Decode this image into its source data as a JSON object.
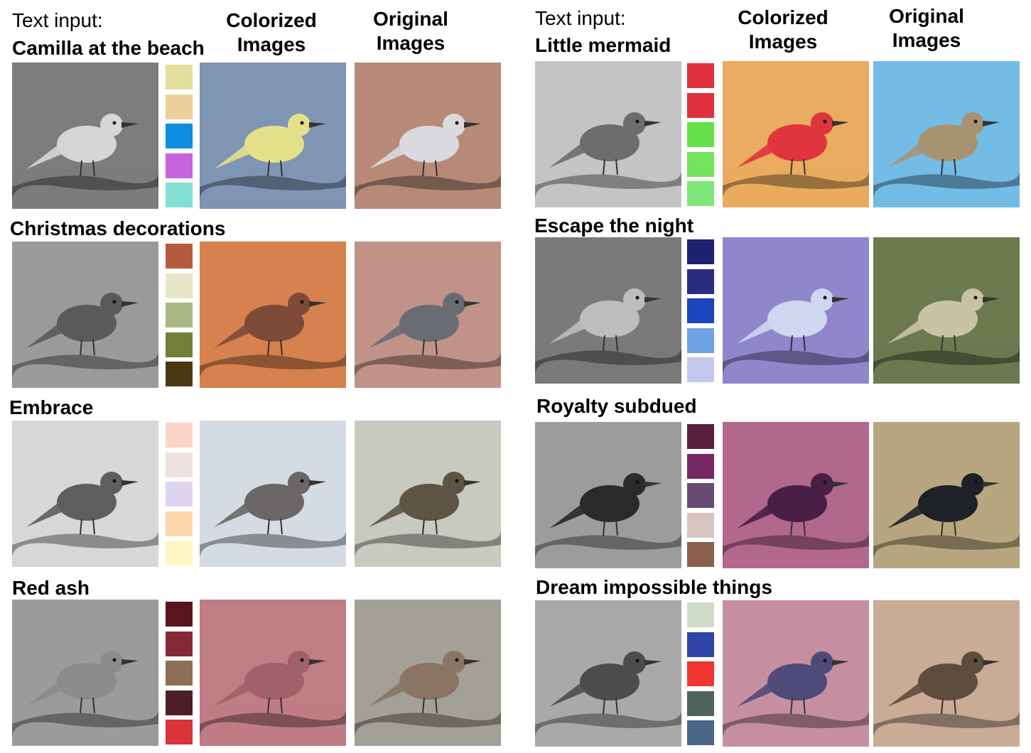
{
  "headers": {
    "text_input": "Text input:",
    "colorized_line1": "Colorized",
    "colorized_line2": "Images",
    "original_line1": "Original",
    "original_line2": "Images"
  },
  "panels": [
    {
      "label": "Camilla at the beach",
      "palette": [
        "#e3df9e",
        "#ecce9b",
        "#0f8de0",
        "#c463dc",
        "#83dfd4"
      ],
      "gray": {
        "bg": "#7d7d7d",
        "bird": "#d6d6d6"
      },
      "colorized": {
        "bg": "#7f95b4",
        "bird": "#e4e08a"
      },
      "original": {
        "bg": "#b78a78",
        "bird": "#d9d9de"
      }
    },
    {
      "label": "Christmas decorations",
      "palette": [
        "#b35c3b",
        "#e6e5c8",
        "#a9b882",
        "#727f37",
        "#4b3712"
      ],
      "gray": {
        "bg": "#9a9a9a",
        "bird": "#5a5a5a"
      },
      "colorized": {
        "bg": "#d7814f",
        "bird": "#7e4a38"
      },
      "original": {
        "bg": "#c19388",
        "bird": "#6a6c73"
      }
    },
    {
      "label": "Embrace",
      "palette": [
        "#fdd3c8",
        "#ede1df",
        "#ddd5f1",
        "#fdd5aa",
        "#fef7c4"
      ],
      "gray": {
        "bg": "#d7d7d7",
        "bird": "#5e5e5e"
      },
      "colorized": {
        "bg": "#d5dbe2",
        "bird": "#6a6766"
      },
      "original": {
        "bg": "#c8cabf",
        "bird": "#5e5443"
      }
    },
    {
      "label": "Red ash",
      "palette": [
        "#59151c",
        "#842a36",
        "#8e6e55",
        "#4e1e26",
        "#da333a"
      ],
      "gray": {
        "bg": "#9b9b9b",
        "bird": "#8c8c8c"
      },
      "colorized": {
        "bg": "#bf7d85",
        "bird": "#a0606a"
      },
      "original": {
        "bg": "#a3a197",
        "bird": "#8a7564"
      }
    },
    {
      "label": "Little mermaid",
      "palette": [
        "#e0313e",
        "#e0313e",
        "#65e04a",
        "#76e35f",
        "#80e87a"
      ],
      "gray": {
        "bg": "#c4c4c4",
        "bird": "#6d6d6d"
      },
      "colorized": {
        "bg": "#e9ac60",
        "bird": "#e0343f"
      },
      "original": {
        "bg": "#73bce6",
        "bird": "#a89272"
      }
    },
    {
      "label": "Escape the night",
      "palette": [
        "#1c2170",
        "#2a2c82",
        "#1b44bf",
        "#6ea3e3",
        "#c4c8ee"
      ],
      "gray": {
        "bg": "#7a7a7a",
        "bird": "#bdbdbd"
      },
      "colorized": {
        "bg": "#8f86cc",
        "bird": "#cfd6f0"
      },
      "original": {
        "bg": "#6c7a4e",
        "bird": "#c9c3a4"
      }
    },
    {
      "label": "Royalty subdued",
      "palette": [
        "#5a1e3e",
        "#762762",
        "#694b72",
        "#d7c3bf",
        "#8a5f4b"
      ],
      "gray": {
        "bg": "#9c9c9c",
        "bird": "#2a2a2a"
      },
      "colorized": {
        "bg": "#b2678c",
        "bird": "#4a1f45"
      },
      "original": {
        "bg": "#b8a680",
        "bird": "#1e2126"
      }
    },
    {
      "label": "Dream impossible things",
      "palette": [
        "#cfdcc6",
        "#2e44a6",
        "#f23732",
        "#4c645c",
        "#4c6689"
      ],
      "gray": {
        "bg": "#a9a9a9",
        "bird": "#4c4c4c"
      },
      "colorized": {
        "bg": "#c58fa0",
        "bird": "#4e4a7a"
      },
      "original": {
        "bg": "#c9ab96",
        "bird": "#5e4c3c"
      }
    }
  ]
}
